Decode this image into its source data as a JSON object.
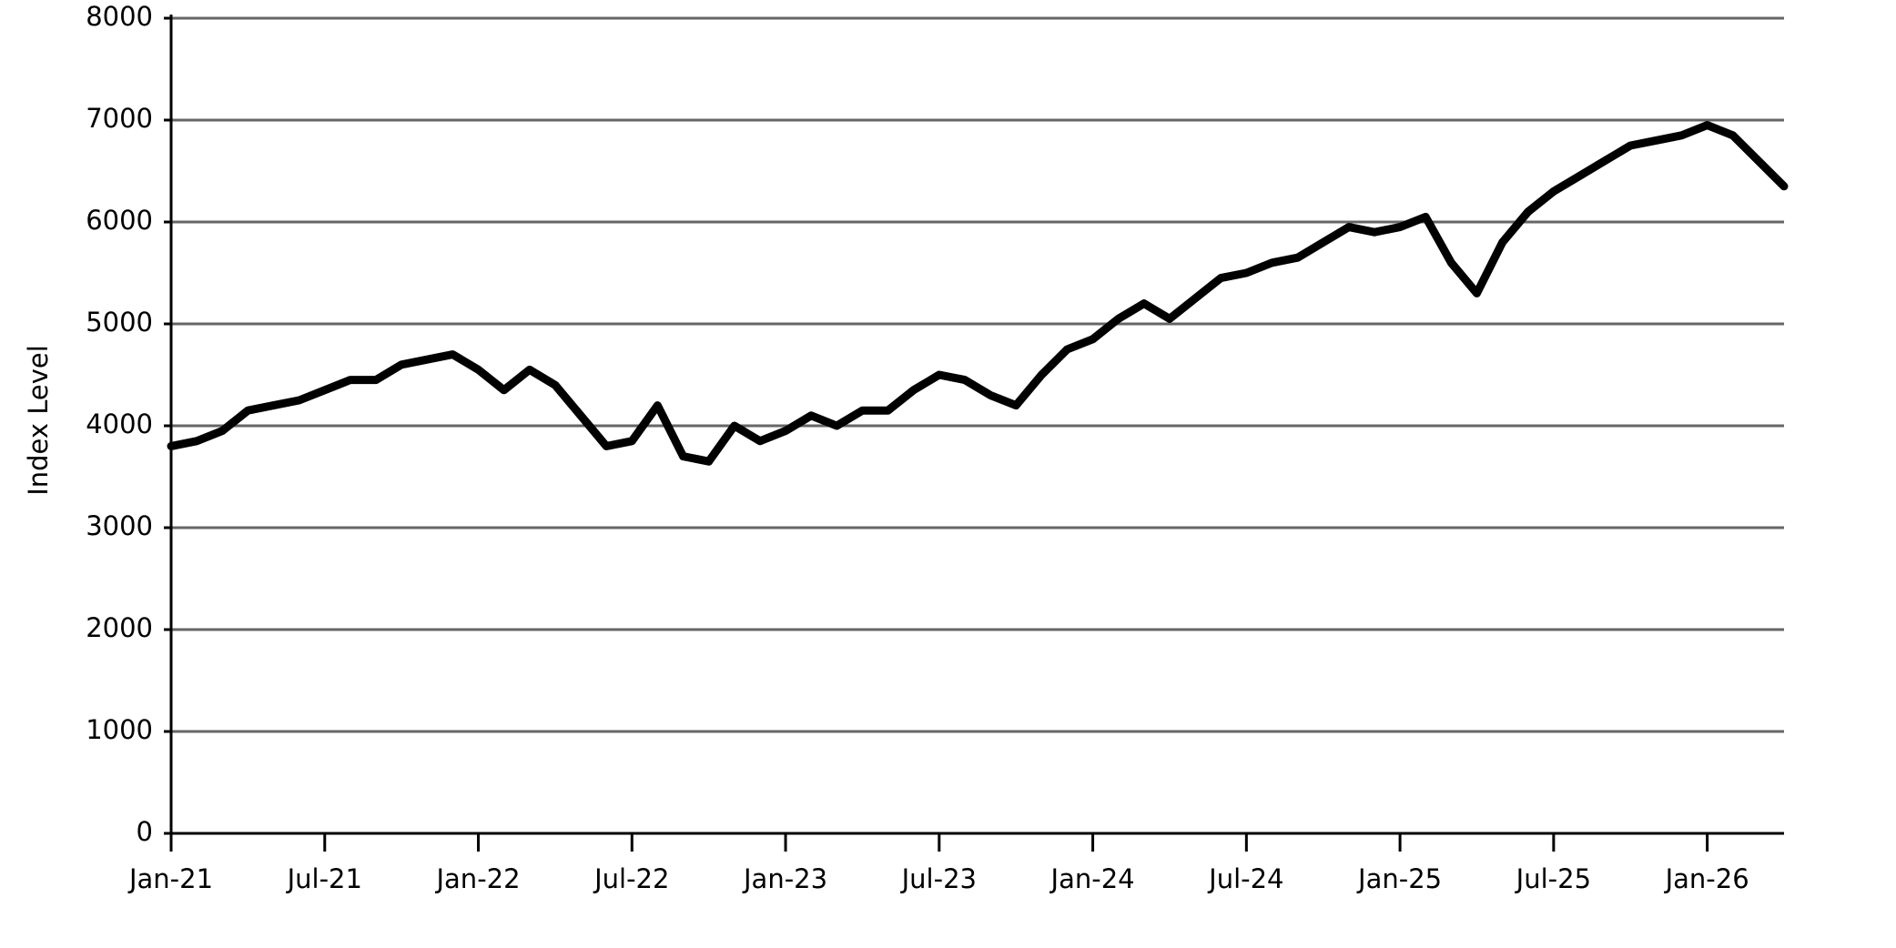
{
  "chart_data": {
    "type": "line",
    "y_label": "Index Level",
    "x": [
      "2021-01",
      "2021-02",
      "2021-03",
      "2021-04",
      "2021-05",
      "2021-06",
      "2021-07",
      "2021-08",
      "2021-09",
      "2021-10",
      "2021-11",
      "2021-12",
      "2022-01",
      "2022-02",
      "2022-03",
      "2022-04",
      "2022-05",
      "2022-06",
      "2022-07",
      "2022-08",
      "2022-09",
      "2022-10",
      "2022-11",
      "2022-12",
      "2023-01",
      "2023-02",
      "2023-03",
      "2023-04",
      "2023-05",
      "2023-06",
      "2023-07",
      "2023-08",
      "2023-09",
      "2023-10",
      "2023-11",
      "2023-12",
      "2024-01",
      "2024-02",
      "2024-03",
      "2024-04",
      "2024-05",
      "2024-06",
      "2024-07",
      "2024-08",
      "2024-09",
      "2024-10",
      "2024-11",
      "2024-12",
      "2025-01",
      "2025-02",
      "2025-03",
      "2025-04",
      "2025-05",
      "2025-06",
      "2025-07",
      "2025-08",
      "2025-09",
      "2025-10",
      "2025-11",
      "2025-12",
      "2026-01",
      "2026-02",
      "2026-03",
      "2026-04"
    ],
    "series": [
      {
        "name": "Index Level",
        "color": "#000000",
        "values": [
          3800,
          3850,
          3950,
          4150,
          4200,
          4250,
          4350,
          4450,
          4450,
          4600,
          4650,
          4700,
          4550,
          4350,
          4550,
          4400,
          4100,
          3800,
          3850,
          4200,
          3700,
          3650,
          4000,
          3850,
          3950,
          4100,
          4000,
          4150,
          4150,
          4350,
          4500,
          4450,
          4300,
          4200,
          4500,
          4750,
          4850,
          5050,
          5200,
          5050,
          5250,
          5450,
          5500,
          5600,
          5650,
          5800,
          5950,
          5900,
          5950,
          6050,
          5600,
          5300,
          5800,
          6100,
          6300,
          6450,
          6600,
          6750,
          6800,
          6850,
          6950,
          6850,
          6600,
          6350
        ]
      }
    ],
    "xlim": [
      "2021-01",
      "2026-04"
    ],
    "xticks": [
      {
        "value": "2021-01",
        "label": "Jan-21"
      },
      {
        "value": "2021-07",
        "label": "Jul-21"
      },
      {
        "value": "2022-01",
        "label": "Jan-22"
      },
      {
        "value": "2022-07",
        "label": "Jul-22"
      },
      {
        "value": "2023-01",
        "label": "Jan-23"
      },
      {
        "value": "2023-07",
        "label": "Jul-23"
      },
      {
        "value": "2024-01",
        "label": "Jan-24"
      },
      {
        "value": "2024-07",
        "label": "Jul-24"
      },
      {
        "value": "2025-01",
        "label": "Jan-25"
      },
      {
        "value": "2025-07",
        "label": "Jul-25"
      },
      {
        "value": "2026-01",
        "label": "Jan-26"
      }
    ],
    "ylim": [
      0,
      8000
    ],
    "yticks": [
      0,
      1000,
      2000,
      3000,
      4000,
      5000,
      6000,
      7000,
      8000
    ],
    "grid": true
  }
}
